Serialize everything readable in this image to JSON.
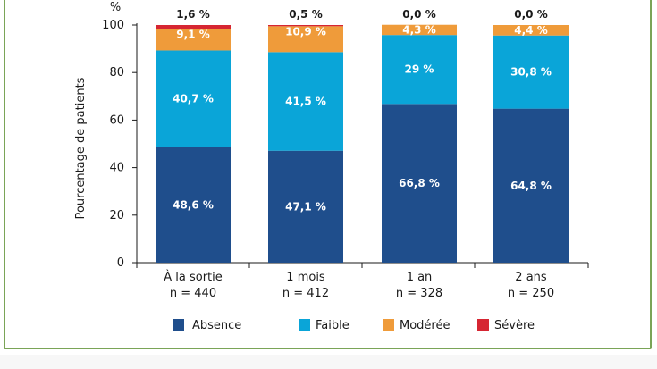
{
  "chart_data": {
    "type": "bar",
    "stacked": true,
    "y_unit": "%",
    "ylabel": "Pourcentage de patients",
    "ylim": [
      0,
      100
    ],
    "yticks": [
      0,
      20,
      40,
      60,
      80,
      100
    ],
    "categories": [
      {
        "label": "À la sortie",
        "n": "n = 440"
      },
      {
        "label": "1 mois",
        "n": "n = 412"
      },
      {
        "label": "1 an",
        "n": "n = 328"
      },
      {
        "label": "2 ans",
        "n": "n = 250"
      }
    ],
    "series": [
      {
        "name": "Absence",
        "color": "#1f4e8c",
        "values": [
          48.6,
          47.1,
          66.8,
          64.8
        ],
        "labels": [
          "48,6 %",
          "47,1 %",
          "66,8 %",
          "64,8 %"
        ]
      },
      {
        "name": "Faible",
        "color": "#0aa5d8",
        "values": [
          40.7,
          41.5,
          29.0,
          30.8
        ],
        "labels": [
          "40,7 %",
          "41,5 %",
          "29 %",
          "30,8 %"
        ]
      },
      {
        "name": "Modérée",
        "color": "#ef9b3a",
        "values": [
          9.1,
          10.9,
          4.3,
          4.4
        ],
        "labels": [
          "9,1 %",
          "10,9 %",
          "4,3 %",
          "4,4 %"
        ]
      },
      {
        "name": "Sévère",
        "color": "#d62632",
        "values": [
          1.6,
          0.5,
          0.0,
          0.0
        ],
        "labels": [
          "1,6 %",
          "0,5 %",
          "0,0 %",
          "0,0 %"
        ]
      }
    ],
    "legend_position": "bottom"
  }
}
